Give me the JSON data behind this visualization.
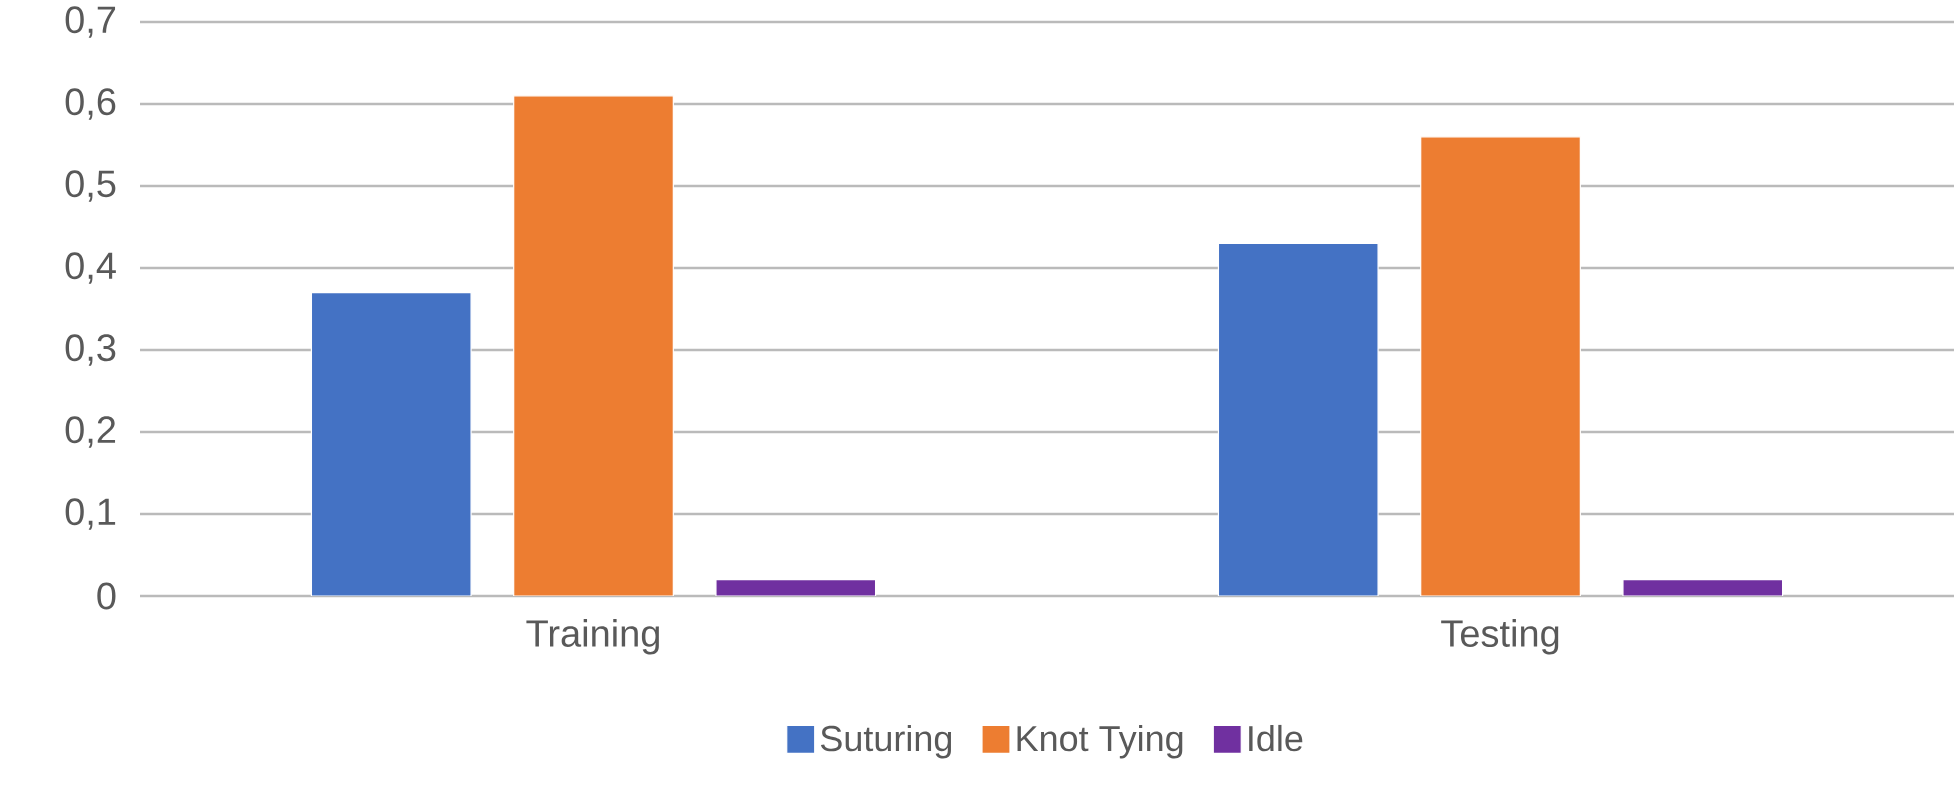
{
  "chart_data": {
    "type": "bar",
    "categories": [
      "Training",
      "Testing"
    ],
    "series": [
      {
        "name": "Suturing",
        "color": "#4472c4",
        "values": [
          0.37,
          0.43
        ]
      },
      {
        "name": "Knot Tying",
        "color": "#ed7d31",
        "values": [
          0.61,
          0.56
        ]
      },
      {
        "name": "Idle",
        "color": "#7030a0",
        "values": [
          0.02,
          0.02
        ]
      }
    ],
    "ylim": [
      0,
      0.7
    ],
    "yticks": [
      0,
      {
        "value": 0.1,
        "label": "0,1"
      },
      {
        "value": 0.2,
        "label": "0,2"
      },
      {
        "value": 0.3,
        "label": "0,3"
      },
      {
        "value": 0.4,
        "label": "0,4"
      },
      {
        "value": 0.5,
        "label": "0,5"
      },
      {
        "value": 0.6,
        "label": "0,6"
      },
      {
        "value": 0.7,
        "label": "0,7"
      }
    ],
    "grid": "y",
    "legend": "bottom"
  }
}
